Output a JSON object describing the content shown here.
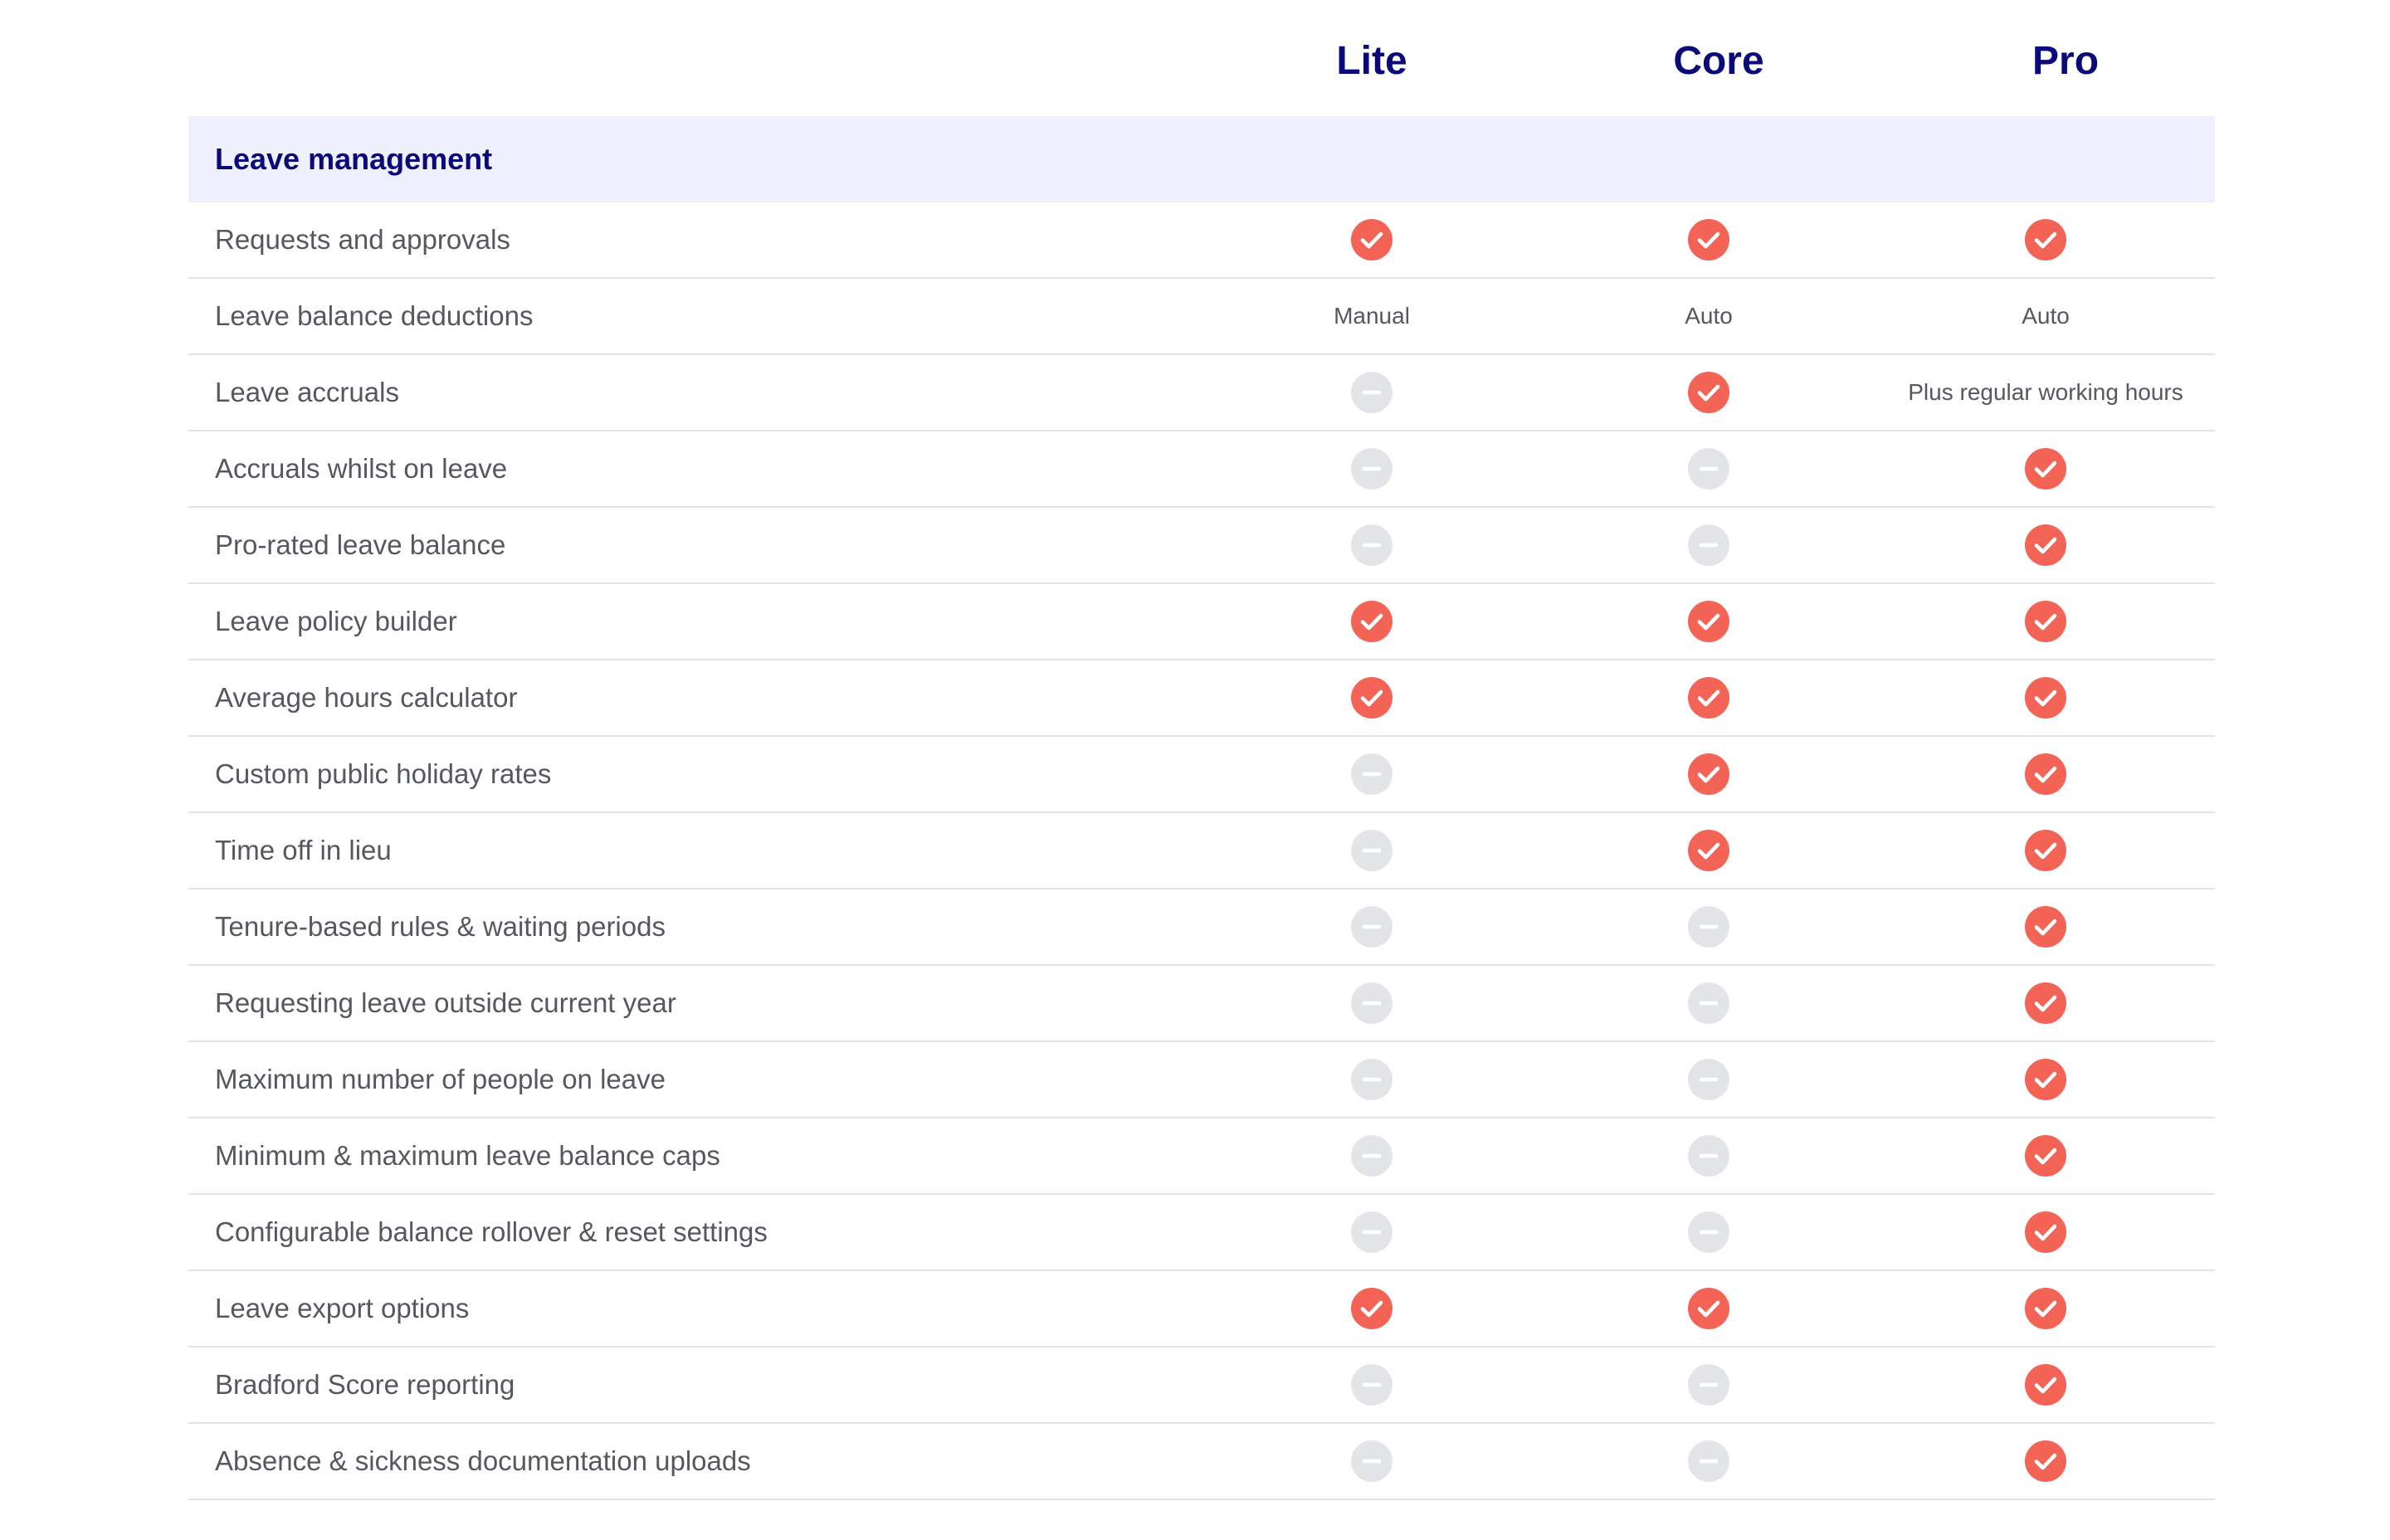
{
  "colors": {
    "heading": "#0a0a7a",
    "section_band": "#eef1fd",
    "check": "#f36356",
    "dash": "#e4e5e8",
    "text": "#55585f",
    "divider": "#e2e3e6"
  },
  "plans": [
    "Lite",
    "Core",
    "Pro"
  ],
  "section": {
    "title": "Leave management"
  },
  "rows": [
    {
      "label": "Requests and approvals",
      "values": [
        "check",
        "check",
        "check"
      ]
    },
    {
      "label": "Leave balance deductions",
      "values": [
        "Manual",
        "Auto",
        "Auto"
      ]
    },
    {
      "label": "Leave accruals",
      "values": [
        "dash",
        "check",
        "Plus regular working hours"
      ]
    },
    {
      "label": "Accruals whilst on leave",
      "values": [
        "dash",
        "dash",
        "check"
      ]
    },
    {
      "label": "Pro-rated leave balance",
      "values": [
        "dash",
        "dash",
        "check"
      ]
    },
    {
      "label": "Leave policy builder",
      "values": [
        "check",
        "check",
        "check"
      ]
    },
    {
      "label": "Average hours calculator",
      "values": [
        "check",
        "check",
        "check"
      ]
    },
    {
      "label": "Custom public holiday rates",
      "values": [
        "dash",
        "check",
        "check"
      ]
    },
    {
      "label": "Time off in lieu",
      "values": [
        "dash",
        "check",
        "check"
      ]
    },
    {
      "label": "Tenure-based rules & waiting periods",
      "values": [
        "dash",
        "dash",
        "check"
      ]
    },
    {
      "label": "Requesting leave outside current year",
      "values": [
        "dash",
        "dash",
        "check"
      ]
    },
    {
      "label": "Maximum number of people on leave",
      "values": [
        "dash",
        "dash",
        "check"
      ]
    },
    {
      "label": "Minimum & maximum leave balance caps",
      "values": [
        "dash",
        "dash",
        "check"
      ]
    },
    {
      "label": "Configurable balance rollover & reset settings",
      "values": [
        "dash",
        "dash",
        "check"
      ]
    },
    {
      "label": "Leave export options",
      "values": [
        "check",
        "check",
        "check"
      ]
    },
    {
      "label": "Bradford Score reporting",
      "values": [
        "dash",
        "dash",
        "check"
      ]
    },
    {
      "label": "Absence & sickness documentation uploads",
      "values": [
        "dash",
        "dash",
        "check"
      ]
    }
  ]
}
